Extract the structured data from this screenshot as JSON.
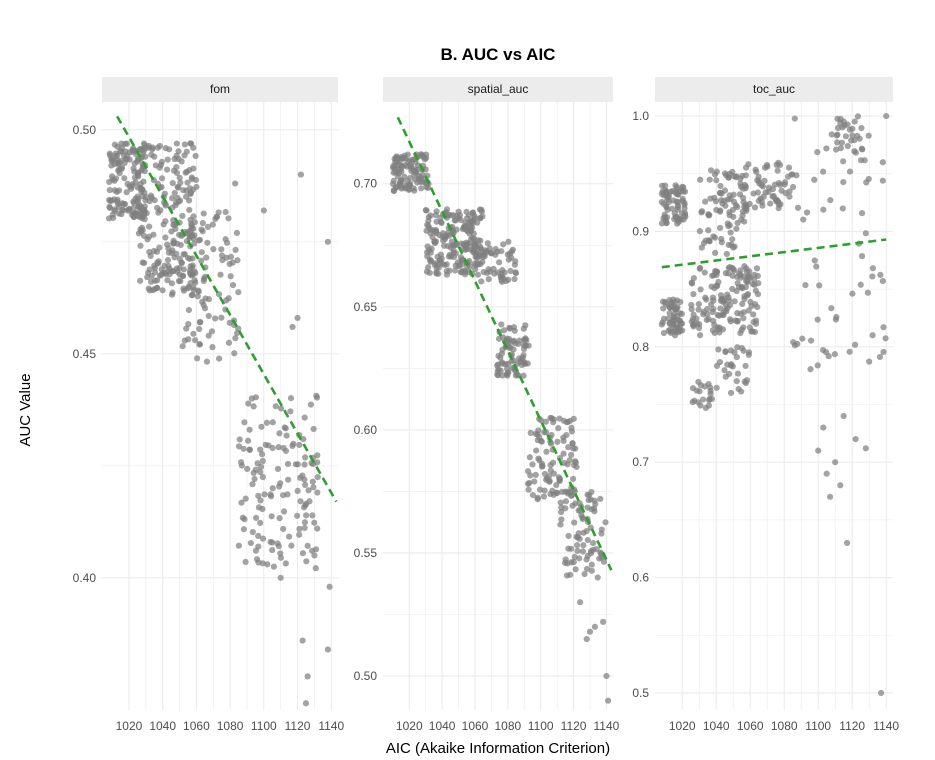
{
  "chart_data": {
    "type": "scatter",
    "title": "B. AUC vs AIC",
    "xlabel": "AIC (Akaike Information Criterion)",
    "ylabel": "AUC Value",
    "grid": true,
    "x_ticks": [
      1020,
      1040,
      1060,
      1080,
      1100,
      1120,
      1140
    ],
    "colors": {
      "points": "#7f7f7f",
      "trend": "#2ca02c",
      "strip": "#ececec",
      "grid": "#ebebeb"
    },
    "facets": [
      {
        "label": "fom",
        "xlim": [
          1004,
          1144
        ],
        "ylim": [
          0.3705,
          0.5062
        ],
        "y_ticks": [
          0.4,
          0.45,
          0.5
        ],
        "y_tick_labels": [
          "0.40",
          "0.45",
          "0.50"
        ],
        "trend": {
          "x": [
            1013,
            1143
          ],
          "y": [
            0.503,
            0.417
          ]
        },
        "clusters": [
          {
            "x": [
              1008,
              1030
            ],
            "y": [
              0.48,
              0.497
            ],
            "n": 140
          },
          {
            "x": [
              1025,
              1060
            ],
            "y": [
              0.463,
              0.497
            ],
            "n": 230
          },
          {
            "x": [
              1050,
              1085
            ],
            "y": [
              0.448,
              0.482
            ],
            "n": 90
          },
          {
            "x": [
              1085,
              1132
            ],
            "y": [
              0.402,
              0.441
            ],
            "n": 140
          }
        ],
        "points": [
          [
            1083,
            0.488
          ],
          [
            1100,
            0.482
          ],
          [
            1122,
            0.49
          ],
          [
            1138,
            0.475
          ],
          [
            1120,
            0.458
          ],
          [
            1117,
            0.456
          ],
          [
            1126,
            0.378
          ],
          [
            1123,
            0.386
          ],
          [
            1138,
            0.384
          ],
          [
            1125,
            0.372
          ],
          [
            1139,
            0.398
          ],
          [
            1130,
            0.405
          ],
          [
            1110,
            0.4
          ],
          [
            1104,
            0.408
          ]
        ]
      },
      {
        "label": "spatial_auc",
        "xlim": [
          1004,
          1144
        ],
        "ylim": [
          0.4862,
          0.7332
        ],
        "y_ticks": [
          0.5,
          0.55,
          0.6,
          0.65,
          0.7
        ],
        "y_tick_labels": [
          "0.50",
          "0.55",
          "0.60",
          "0.65",
          "0.70"
        ],
        "trend": {
          "x": [
            1013,
            1143
          ],
          "y": [
            0.727,
            0.543
          ]
        },
        "clusters": [
          {
            "x": [
              1010,
              1032
            ],
            "y": [
              0.697,
              0.712
            ],
            "n": 110
          },
          {
            "x": [
              1030,
              1065
            ],
            "y": [
              0.663,
              0.69
            ],
            "n": 200
          },
          {
            "x": [
              1060,
              1085
            ],
            "y": [
              0.66,
              0.677
            ],
            "n": 60
          },
          {
            "x": [
              1073,
              1093
            ],
            "y": [
              0.622,
              0.643
            ],
            "n": 80
          },
          {
            "x": [
              1092,
              1122
            ],
            "y": [
              0.57,
              0.605
            ],
            "n": 100
          },
          {
            "x": [
              1112,
              1140
            ],
            "y": [
              0.54,
              0.575
            ],
            "n": 80
          }
        ],
        "points": [
          [
            1140,
            0.5
          ],
          [
            1141,
            0.49
          ],
          [
            1133,
            0.52
          ],
          [
            1128,
            0.515
          ],
          [
            1124,
            0.53
          ],
          [
            1138,
            0.522
          ],
          [
            1130,
            0.518
          ]
        ]
      },
      {
        "label": "toc_auc",
        "xlim": [
          1004,
          1144
        ],
        "ylim": [
          0.4852,
          1.0122
        ],
        "y_ticks": [
          0.5,
          0.6,
          0.7,
          0.8,
          0.9,
          1.0
        ],
        "y_tick_labels": [
          "0.5",
          "0.6",
          "0.7",
          "0.8",
          "0.9",
          "1.0"
        ],
        "trend": {
          "x": [
            1008,
            1140
          ],
          "y": [
            0.869,
            0.893
          ]
        },
        "clusters": [
          {
            "x": [
              1008,
              1022
            ],
            "y": [
              0.905,
              0.94
            ],
            "n": 70
          },
          {
            "x": [
              1008,
              1020
            ],
            "y": [
              0.808,
              0.842
            ],
            "n": 60
          },
          {
            "x": [
              1025,
              1065
            ],
            "y": [
              0.81,
              0.87
            ],
            "n": 150
          },
          {
            "x": [
              1030,
              1058
            ],
            "y": [
              0.88,
              0.955
            ],
            "n": 90
          },
          {
            "x": [
              1055,
              1085
            ],
            "y": [
              0.92,
              0.96
            ],
            "n": 60
          },
          {
            "x": [
              1040,
              1060
            ],
            "y": [
              0.758,
              0.8
            ],
            "n": 30
          },
          {
            "x": [
              1026,
              1038
            ],
            "y": [
              0.745,
              0.77
            ],
            "n": 20
          },
          {
            "x": [
              1085,
              1140
            ],
            "y": [
              0.78,
              1.0
            ],
            "n": 60
          },
          {
            "x": [
              1110,
              1126
            ],
            "y": [
              0.96,
              1.0
            ],
            "n": 30
          }
        ],
        "points": [
          [
            1137,
            0.5
          ],
          [
            1117,
            0.63
          ],
          [
            1113,
            0.68
          ],
          [
            1105,
            0.69
          ],
          [
            1100,
            0.71
          ],
          [
            1103,
            0.73
          ],
          [
            1107,
            0.67
          ],
          [
            1110,
            0.7
          ],
          [
            1115,
            0.74
          ],
          [
            1122,
            0.72
          ],
          [
            1128,
            0.712
          ],
          [
            1132,
            0.81
          ],
          [
            1138,
            0.96
          ],
          [
            1140,
            1.0
          ]
        ]
      }
    ]
  }
}
